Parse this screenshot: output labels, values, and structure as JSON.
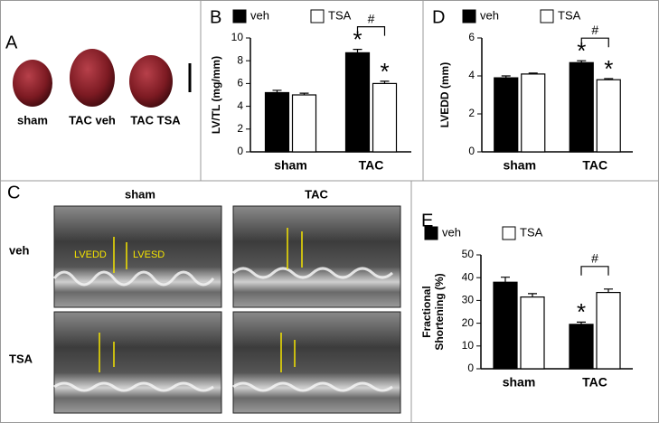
{
  "panel_a": {
    "letter": "A",
    "labels": [
      "sham",
      "TAC veh",
      "TAC TSA"
    ]
  },
  "panel_c": {
    "letter": "C",
    "columns": [
      "sham",
      "TAC"
    ],
    "rows": [
      "veh",
      "TSA"
    ],
    "annotations": [
      "LVEDD",
      "LVESD"
    ]
  },
  "chart_data": [
    {
      "type": "bar",
      "panel": "B",
      "ylabel": [
        "LV/TL (mg/mm)"
      ],
      "categories": [
        "sham",
        "TAC"
      ],
      "series": [
        {
          "name": "veh",
          "color": "#000000",
          "values": [
            5.2,
            8.7
          ],
          "errors": [
            0.2,
            0.3
          ]
        },
        {
          "name": "TSA",
          "color": "#ffffff",
          "values": [
            5.0,
            6.0
          ],
          "errors": [
            0.15,
            0.2
          ]
        }
      ],
      "ylim": [
        0,
        10
      ],
      "yticks": [
        0,
        2,
        4,
        6,
        8,
        10
      ],
      "annotations": [
        "*",
        "*",
        "#"
      ]
    },
    {
      "type": "bar",
      "panel": "D",
      "ylabel": [
        "LVEDD (mm)"
      ],
      "categories": [
        "sham",
        "TAC"
      ],
      "series": [
        {
          "name": "veh",
          "color": "#000000",
          "values": [
            3.9,
            4.7
          ],
          "errors": [
            0.1,
            0.1
          ]
        },
        {
          "name": "TSA",
          "color": "#ffffff",
          "values": [
            4.1,
            3.8
          ],
          "errors": [
            0.05,
            0.06
          ]
        }
      ],
      "ylim": [
        0,
        6
      ],
      "yticks": [
        0,
        2,
        4,
        6
      ],
      "annotations": [
        "*",
        "*",
        "#"
      ]
    },
    {
      "type": "bar",
      "panel": "E",
      "ylabel": [
        "Fractional",
        "Shortening (%)"
      ],
      "categories": [
        "sham",
        "TAC"
      ],
      "series": [
        {
          "name": "veh",
          "color": "#000000",
          "values": [
            38,
            19.5
          ],
          "errors": [
            2.2,
            1.0
          ]
        },
        {
          "name": "TSA",
          "color": "#ffffff",
          "values": [
            31.5,
            33.5
          ],
          "errors": [
            1.5,
            1.5
          ]
        }
      ],
      "ylim": [
        0,
        50
      ],
      "yticks": [
        0,
        10,
        20,
        30,
        40,
        50
      ],
      "annotations": [
        "*",
        "#"
      ]
    }
  ]
}
